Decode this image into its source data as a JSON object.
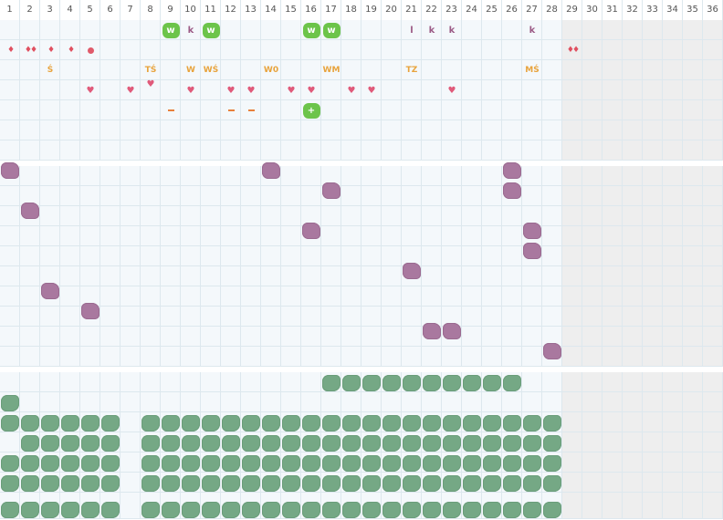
{
  "days": [
    "1",
    "2",
    "3",
    "4",
    "5",
    "6",
    "7",
    "8",
    "9",
    "10",
    "11",
    "12",
    "13",
    "14",
    "15",
    "16",
    "17",
    "18",
    "19",
    "20",
    "21",
    "22",
    "23",
    "24",
    "25",
    "26",
    "27",
    "28",
    "29",
    "30",
    "31",
    "32",
    "33",
    "34",
    "35",
    "36"
  ],
  "active_days": 28,
  "colors": {
    "grid_line": "#dde8ee",
    "cell_bg": "#f4f8fb",
    "inactive_bg": "#eeeeee",
    "green_badge": "#6cc44a",
    "green_blob": "#75a885",
    "purple_blob": "#a9789f",
    "orange_text": "#e8a33c",
    "red": "#e05a6a",
    "purple_text": "#9c5b86"
  },
  "markers": [
    {
      "day": 9,
      "row": 1,
      "kind": "badge",
      "text": "w"
    },
    {
      "day": 10,
      "row": 1,
      "kind": "letter",
      "text": "k"
    },
    {
      "day": 11,
      "row": 1,
      "kind": "badge",
      "text": "w"
    },
    {
      "day": 16,
      "row": 1,
      "kind": "badge",
      "text": "w"
    },
    {
      "day": 17,
      "row": 1,
      "kind": "badge",
      "text": "w"
    },
    {
      "day": 21,
      "row": 1,
      "kind": "letter",
      "text": "l"
    },
    {
      "day": 22,
      "row": 1,
      "kind": "letter",
      "text": "k"
    },
    {
      "day": 23,
      "row": 1,
      "kind": "letter",
      "text": "k"
    },
    {
      "day": 27,
      "row": 1,
      "kind": "letter",
      "text": "k"
    },
    {
      "day": 1,
      "row": 2,
      "kind": "drop",
      "text": "♦"
    },
    {
      "day": 2,
      "row": 2,
      "kind": "drop",
      "text": "♦♦"
    },
    {
      "day": 3,
      "row": 2,
      "kind": "drop",
      "text": "♦"
    },
    {
      "day": 4,
      "row": 2,
      "kind": "drop",
      "text": "♦"
    },
    {
      "day": 5,
      "row": 2,
      "kind": "dot",
      "text": ""
    },
    {
      "day": 29,
      "row": 2,
      "kind": "drop",
      "text": "♦♦"
    },
    {
      "day": 3,
      "row": 3,
      "kind": "text",
      "text": "Ś"
    },
    {
      "day": 8,
      "row": 3,
      "kind": "text",
      "text": "TŚ"
    },
    {
      "day": 10,
      "row": 3,
      "kind": "text",
      "text": "W"
    },
    {
      "day": 11,
      "row": 3,
      "kind": "text",
      "text": "WŚ"
    },
    {
      "day": 14,
      "row": 3,
      "kind": "text",
      "text": "W0"
    },
    {
      "day": 17,
      "row": 3,
      "kind": "text",
      "text": "WM"
    },
    {
      "day": 21,
      "row": 3,
      "kind": "text",
      "text": "TZ"
    },
    {
      "day": 27,
      "row": 3,
      "kind": "text",
      "text": "MŚ"
    },
    {
      "day": 8,
      "row": 3.7,
      "kind": "heart",
      "text": "♥"
    },
    {
      "day": 5,
      "row": 4,
      "kind": "heart",
      "text": "♥"
    },
    {
      "day": 7,
      "row": 4,
      "kind": "heart",
      "text": "♥"
    },
    {
      "day": 10,
      "row": 4,
      "kind": "heart",
      "text": "♥"
    },
    {
      "day": 12,
      "row": 4,
      "kind": "heart",
      "text": "♥"
    },
    {
      "day": 13,
      "row": 4,
      "kind": "heart",
      "text": "♥"
    },
    {
      "day": 15,
      "row": 4,
      "kind": "heart",
      "text": "♥"
    },
    {
      "day": 16,
      "row": 4,
      "kind": "heart",
      "text": "♥"
    },
    {
      "day": 18,
      "row": 4,
      "kind": "heart",
      "text": "♥"
    },
    {
      "day": 19,
      "row": 4,
      "kind": "heart",
      "text": "♥"
    },
    {
      "day": 23,
      "row": 4,
      "kind": "heart",
      "text": "♥"
    },
    {
      "day": 9,
      "row": 5,
      "kind": "dash",
      "text": ""
    },
    {
      "day": 12,
      "row": 5,
      "kind": "dash",
      "text": ""
    },
    {
      "day": 13,
      "row": 5,
      "kind": "dash",
      "text": ""
    },
    {
      "day": 16,
      "row": 5,
      "kind": "badge",
      "text": "+"
    }
  ],
  "purple_blobs": [
    {
      "day": 1,
      "row": 8
    },
    {
      "day": 14,
      "row": 8
    },
    {
      "day": 26,
      "row": 8
    },
    {
      "day": 17,
      "row": 9
    },
    {
      "day": 26,
      "row": 9
    },
    {
      "day": 2,
      "row": 10
    },
    {
      "day": 16,
      "row": 11
    },
    {
      "day": 27,
      "row": 11
    },
    {
      "day": 27,
      "row": 12
    },
    {
      "day": 21,
      "row": 13
    },
    {
      "day": 3,
      "row": 14
    },
    {
      "day": 5,
      "row": 15
    },
    {
      "day": 22,
      "row": 16
    },
    {
      "day": 23,
      "row": 16
    },
    {
      "day": 28,
      "row": 17
    }
  ],
  "green_rows": [
    {
      "row": 18.6,
      "days": [
        17,
        18,
        19,
        20,
        21,
        22,
        23,
        24,
        25,
        26
      ]
    },
    {
      "row": 19.6,
      "days": [
        1
      ]
    },
    {
      "row": 20.6,
      "days": [
        1,
        2,
        3,
        4,
        5,
        6,
        8,
        9,
        10,
        11,
        12,
        13,
        14,
        15,
        16,
        17,
        18,
        19,
        20,
        21,
        22,
        23,
        24,
        25,
        26,
        27,
        28
      ]
    },
    {
      "row": 21.6,
      "days": [
        2,
        3,
        4,
        5,
        6,
        8,
        9,
        10,
        11,
        12,
        13,
        14,
        15,
        16,
        17,
        18,
        19,
        20,
        21,
        22,
        23,
        24,
        25,
        26,
        27,
        28
      ]
    },
    {
      "row": 22.6,
      "days": [
        1,
        2,
        3,
        4,
        5,
        6,
        8,
        9,
        10,
        11,
        12,
        13,
        14,
        15,
        16,
        17,
        18,
        19,
        20,
        21,
        22,
        23,
        24,
        25,
        26,
        27,
        28
      ]
    },
    {
      "row": 23.6,
      "days": [
        1,
        2,
        3,
        4,
        5,
        6,
        8,
        9,
        10,
        11,
        12,
        13,
        14,
        15,
        16,
        17,
        18,
        19,
        20,
        21,
        22,
        23,
        24,
        25,
        26,
        27,
        28
      ]
    },
    {
      "row": 24.9,
      "days": [
        1,
        2,
        3,
        4,
        5,
        6,
        8,
        9,
        10,
        11,
        12,
        13,
        14,
        15,
        16,
        17,
        18,
        19,
        20,
        21,
        22,
        23,
        24,
        25,
        26,
        27,
        28
      ]
    }
  ]
}
